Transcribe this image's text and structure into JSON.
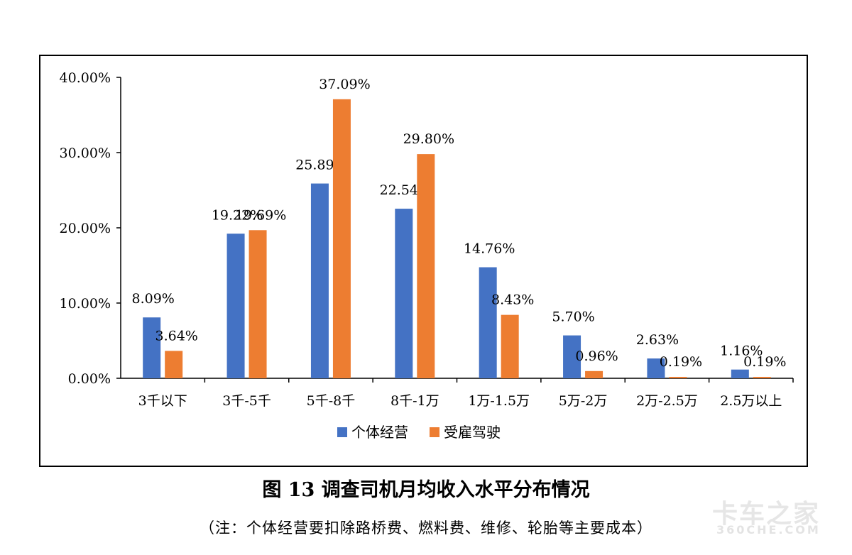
{
  "chart_data": {
    "type": "bar",
    "categories": [
      "3千以下",
      "3千-5千",
      "5千-8千",
      "8千-1万",
      "1万-1.5万",
      "5万-2万",
      "2万-2.5万",
      "2.5万以上"
    ],
    "series": [
      {
        "name": "个体经营",
        "color": "#4472c4",
        "values": [
          8.09,
          19.22,
          25.89,
          22.54,
          14.76,
          5.7,
          2.63,
          1.16
        ],
        "labels": [
          "8.09%",
          "19.22%",
          "25.89%",
          "22.54%",
          "14.76%",
          "5.70%",
          "2.63%",
          "1.16%"
        ]
      },
      {
        "name": "受雇驾驶",
        "color": "#ed7d31",
        "values": [
          3.64,
          19.69,
          37.09,
          29.8,
          8.43,
          0.96,
          0.19,
          0.19
        ],
        "labels": [
          "3.64%",
          "19.69%",
          "37.09%",
          "29.80%",
          "8.43%",
          "0.96%",
          "0.19%",
          "0.19%"
        ]
      }
    ],
    "yticks": [
      "0.00%",
      "10.00%",
      "20.00%",
      "30.00%",
      "40.00%"
    ],
    "ytick_values": [
      0,
      10,
      20,
      30,
      40
    ],
    "ylim": [
      0,
      40
    ],
    "legend": "bottom",
    "grid": false
  },
  "title": "图 13  调查司机月均收入水平分布情况",
  "note": "（注：个体经营要扣除路桥费、燃料费、维修、轮胎等主要成本）",
  "watermark": {
    "main": "卡车之家",
    "sub": "360CHE.COM"
  }
}
